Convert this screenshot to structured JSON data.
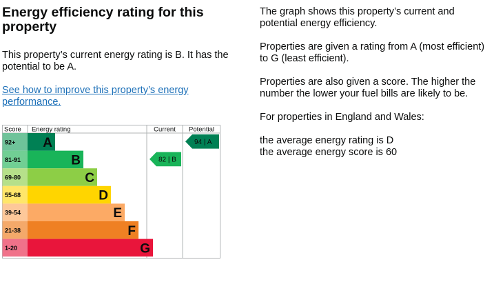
{
  "left": {
    "heading": "Energy efficiency rating for this property",
    "summary": "This property’s current energy rating is B. It has the potential to be A.",
    "link_text": "See how to improve this property’s energy performance."
  },
  "right": {
    "p1": "The graph shows this property’s current and potential energy efficiency.",
    "p2": "Properties are given a rating from A (most efficient) to G (least efficient).",
    "p3": "Properties are also given a score. The higher the number the lower your fuel bills are likely to be.",
    "p4": "For properties in England and Wales:",
    "p5a": "the average energy rating is D",
    "p5b": "the average energy score is 60"
  },
  "chart_data": {
    "type": "bar",
    "headers": {
      "score": "Score",
      "rating": "Energy rating",
      "current": "Current",
      "potential": "Potential"
    },
    "bands": [
      {
        "range": "92+",
        "letter": "A",
        "color": "#008054",
        "score_bg": "#6fc39a"
      },
      {
        "range": "81-91",
        "letter": "B",
        "color": "#19b459",
        "score_bg": "#71cf94"
      },
      {
        "range": "69-80",
        "letter": "C",
        "color": "#8dce46",
        "score_bg": "#b6e08a"
      },
      {
        "range": "55-68",
        "letter": "D",
        "color": "#ffd500",
        "score_bg": "#ffe66a"
      },
      {
        "range": "39-54",
        "letter": "E",
        "color": "#fcaa65",
        "score_bg": "#fdc89a"
      },
      {
        "range": "21-38",
        "letter": "F",
        "color": "#ef8023",
        "score_bg": "#f4a96a"
      },
      {
        "range": "1-20",
        "letter": "G",
        "color": "#e9153b",
        "score_bg": "#f0728a"
      }
    ],
    "current": {
      "score": 82,
      "letter": "B",
      "label": "82 | B",
      "color": "#19b459"
    },
    "potential": {
      "score": 94,
      "letter": "A",
      "label": "94 | A",
      "color": "#008054"
    }
  }
}
